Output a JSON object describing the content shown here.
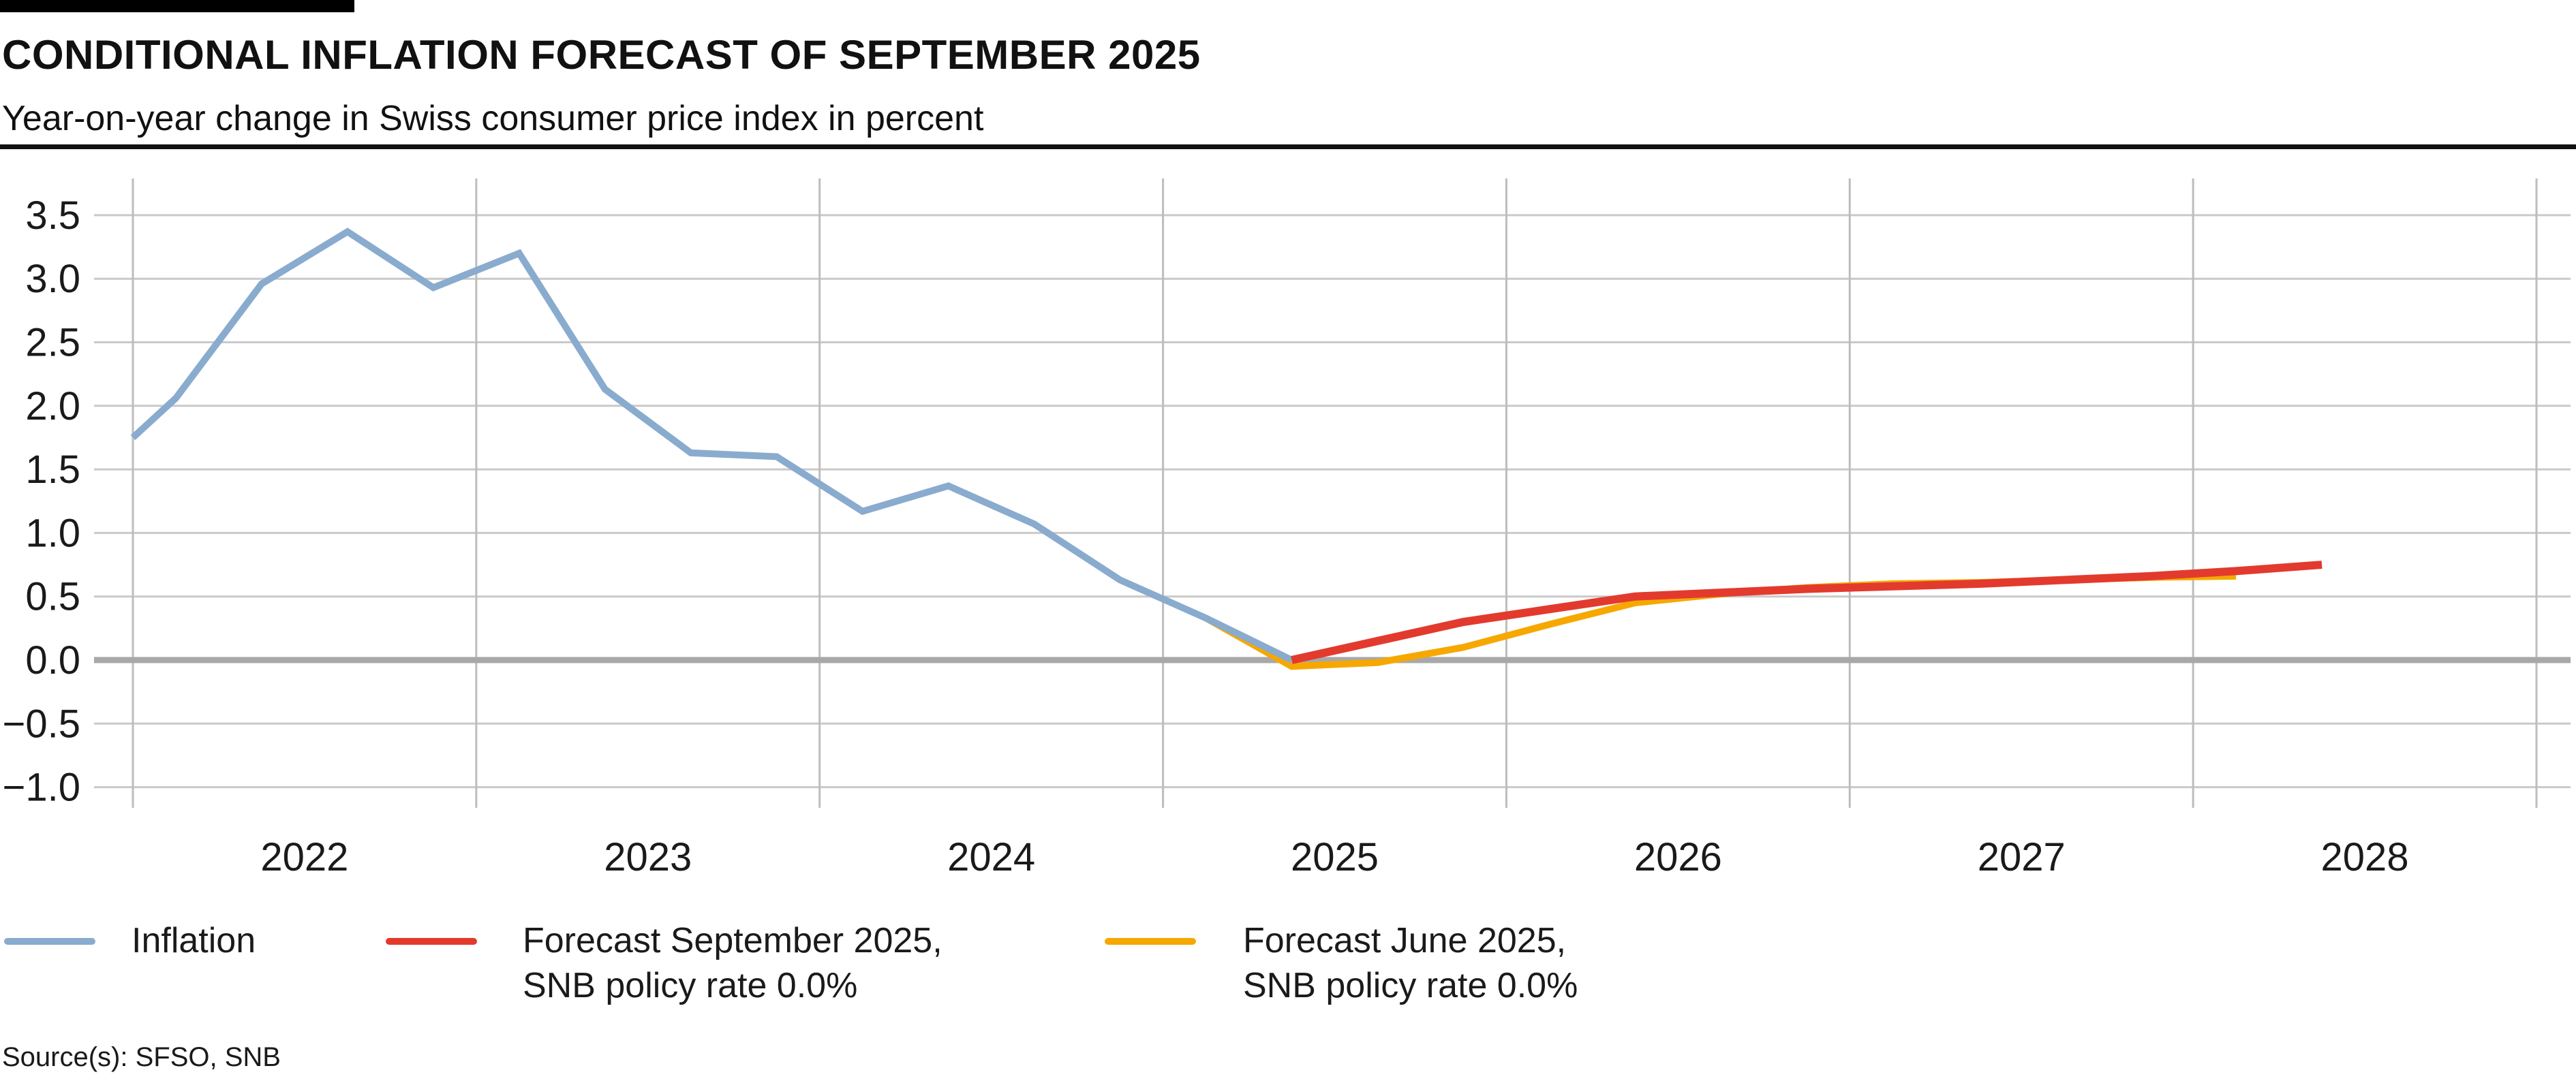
{
  "header": {
    "title": "CONDITIONAL INFLATION FORECAST OF SEPTEMBER 2025",
    "subtitle": "Year-on-year change in Swiss consumer price index in percent"
  },
  "source_note": "Source(s): SFSO, SNB",
  "colors": {
    "inflation_blue": "#89ABCE",
    "forecast_september_red": "#E33A2E",
    "forecast_june_orange": "#F6A800",
    "gridline": "#C9C9C9",
    "vertical_gridline": "#BDBDBD",
    "zero_line": "#A8A8A8",
    "text": "#1a1a1a",
    "rule_black": "#111111"
  },
  "chart_data": {
    "type": "line",
    "title": "CONDITIONAL INFLATION FORECAST OF SEPTEMBER 2025",
    "subtitle": "Year-on-year change in Swiss consumer price index in percent",
    "xlabel": "",
    "ylabel": "Year-on-year change in Swiss consumer price index in percent",
    "xlim": [
      2022,
      2029
    ],
    "ylim": [
      -1.0,
      3.5
    ],
    "grid": true,
    "legend_position": "bottom",
    "y_tick_values": [
      3.5,
      3.0,
      2.5,
      2.0,
      1.5,
      1.0,
      0.5,
      0.0,
      -0.5,
      -1.0
    ],
    "y_tick_labels": [
      "3.5",
      "3.0",
      "2.5",
      "2.0",
      "1.5",
      "1.0",
      "0.5",
      "0.0",
      "−0.5",
      "−1.0"
    ],
    "x_tick_labels": [
      "2022",
      "2023",
      "2024",
      "2025",
      "2026",
      "2027",
      "2028"
    ],
    "series": [
      {
        "name": "Inflation",
        "legend_lines": [
          "Inflation"
        ],
        "color": "#89ABCE",
        "stroke_width": 10,
        "z": 1,
        "x": [
          2022.0,
          2022.125,
          2022.375,
          2022.625,
          2022.875,
          2023.125,
          2023.375,
          2023.625,
          2023.875,
          2024.125,
          2024.375,
          2024.625,
          2024.875,
          2025.125,
          2025.375
        ],
        "values": [
          1.75,
          2.06,
          2.96,
          3.37,
          2.93,
          3.2,
          2.13,
          1.63,
          1.6,
          1.17,
          1.37,
          1.07,
          0.63,
          0.33,
          0.0
        ]
      },
      {
        "name": "Forecast September 2025, SNB policy rate 0.0%",
        "legend_lines": [
          "Forecast September 2025,",
          "SNB policy rate 0.0%"
        ],
        "color": "#E33A2E",
        "stroke_width": 12,
        "z": 2,
        "x": [
          2025.375,
          2025.625,
          2025.875,
          2026.125,
          2026.375,
          2026.625,
          2026.875,
          2027.125,
          2027.375,
          2027.625,
          2027.875,
          2028.125,
          2028.375
        ],
        "values": [
          0.0,
          0.15,
          0.3,
          0.4,
          0.5,
          0.53,
          0.56,
          0.58,
          0.6,
          0.63,
          0.66,
          0.7,
          0.75
        ]
      },
      {
        "name": "Forecast June 2025, SNB policy rate 0.0%",
        "legend_lines": [
          "Forecast June 2025,",
          "SNB policy rate 0.0%"
        ],
        "color": "#F6A800",
        "stroke_width": 10,
        "z": 0,
        "x": [
          2025.125,
          2025.375,
          2025.625,
          2025.875,
          2026.125,
          2026.375,
          2026.625,
          2026.875,
          2027.125,
          2027.375,
          2027.625,
          2027.875,
          2028.125
        ],
        "values": [
          0.33,
          -0.05,
          -0.02,
          0.1,
          0.28,
          0.45,
          0.52,
          0.57,
          0.6,
          0.61,
          0.63,
          0.65,
          0.66
        ]
      }
    ]
  }
}
